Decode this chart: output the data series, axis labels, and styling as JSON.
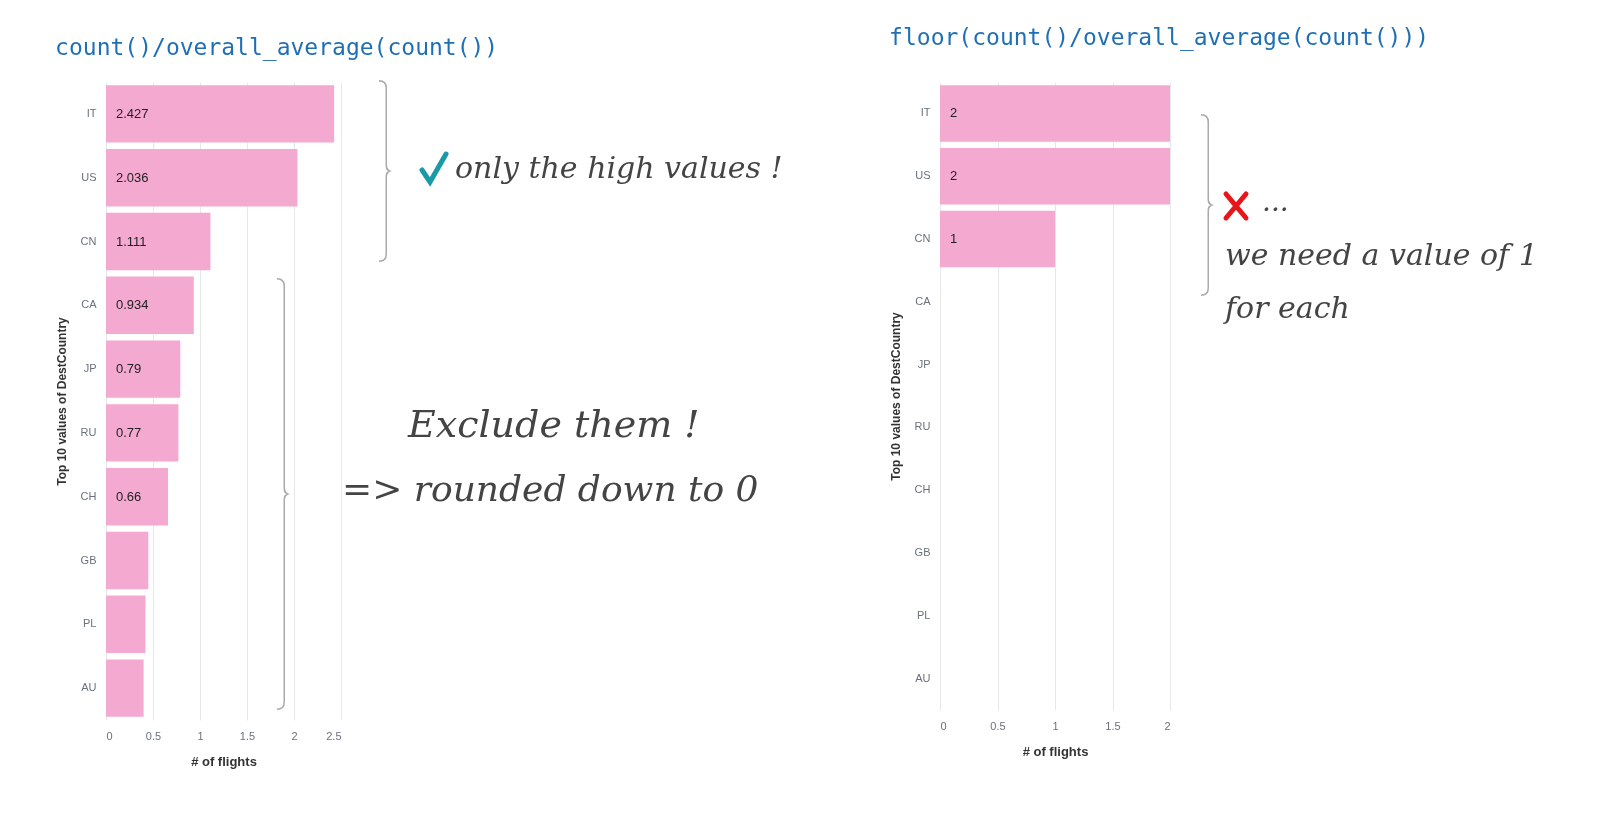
{
  "chart_data": [
    {
      "type": "bar",
      "orientation": "horizontal",
      "title": "count()/overall_average(count())",
      "xlabel": "# of flights",
      "ylabel": "Top 10 values of DestCountry",
      "categories": [
        "IT",
        "US",
        "CN",
        "CA",
        "JP",
        "RU",
        "CH",
        "GB",
        "PL",
        "AU"
      ],
      "series": [
        {
          "color": "#f4a9d0",
          "values": [
            2.427,
            2.036,
            1.111,
            0.934,
            0.79,
            0.77,
            0.66,
            0.45,
            0.42,
            0.4
          ],
          "value_labels": [
            "2.427",
            "2.036",
            "1.111",
            "0.934",
            "0.79",
            "0.77",
            "0.66",
            null,
            null,
            null
          ]
        }
      ],
      "xlim": [
        0,
        2.5
      ],
      "xticks": [
        0,
        0.5,
        1,
        1.5,
        2,
        2.5
      ],
      "grid": "x",
      "legend": false,
      "annotations": [
        "only the high values !",
        "Exclude them !",
        "=> rounded down to 0"
      ]
    },
    {
      "type": "bar",
      "orientation": "horizontal",
      "title": "floor(count()/overall_average(count()))",
      "xlabel": "# of flights",
      "ylabel": "Top 10 values of DestCountry",
      "categories": [
        "IT",
        "US",
        "CN",
        "CA",
        "JP",
        "RU",
        "CH",
        "GB",
        "PL",
        "AU"
      ],
      "series": [
        {
          "color": "#f4a9d0",
          "values": [
            2,
            2,
            1,
            0,
            0,
            0,
            0,
            0,
            0,
            0
          ],
          "value_labels": [
            "2",
            "2",
            "1",
            null,
            null,
            null,
            null,
            null,
            null,
            null
          ]
        }
      ],
      "xlim": [
        0,
        2
      ],
      "xticks": [
        0,
        0.5,
        1,
        1.5,
        2
      ],
      "grid": "x",
      "legend": false,
      "annotations": [
        "...",
        "we need a value of 1",
        "for each"
      ]
    }
  ]
}
